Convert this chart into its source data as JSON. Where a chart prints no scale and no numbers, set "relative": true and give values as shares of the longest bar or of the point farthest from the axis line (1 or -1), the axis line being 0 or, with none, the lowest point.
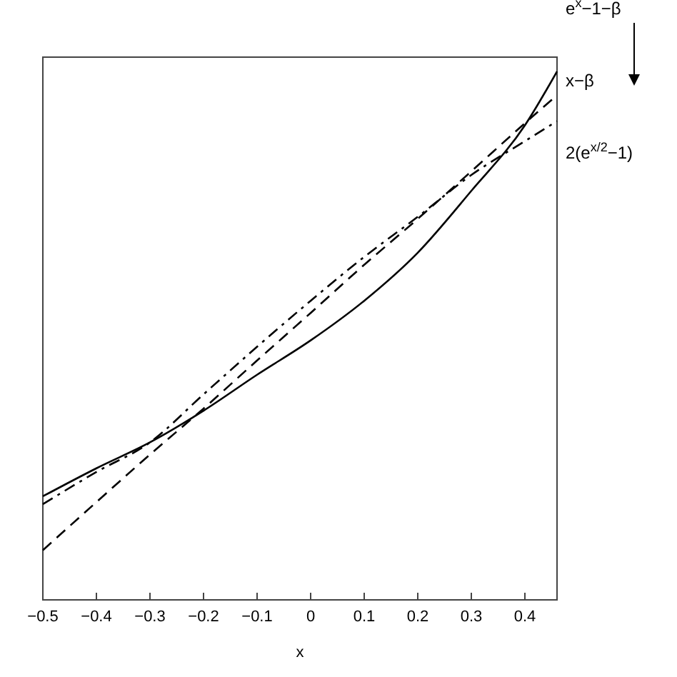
{
  "chart_data": {
    "type": "line",
    "relative": true,
    "xlabel": "x",
    "xlim": [
      -0.5,
      0.46
    ],
    "xticks": [
      -0.5,
      -0.4,
      -0.3,
      -0.2,
      -0.1,
      0,
      0.1,
      0.2,
      0.3,
      0.4
    ],
    "grid": false,
    "legend": "right",
    "x": [
      -0.5,
      -0.4,
      -0.3,
      -0.2,
      -0.1,
      0,
      0.1,
      0.2,
      0.3,
      0.4,
      0.46
    ],
    "series": [
      {
        "name": "e$^{x}$−1−β",
        "color": "#000000",
        "line_style": "solid",
        "values": [
          0.196,
          0.249,
          0.298,
          0.358,
          0.426,
          0.491,
          0.566,
          0.657,
          0.774,
          0.898,
          1
        ]
      },
      {
        "name": "x−β",
        "color": "#000000",
        "line_style": "dashed",
        "values": [
          0.094,
          0.185,
          0.275,
          0.362,
          0.453,
          0.543,
          0.634,
          0.721,
          0.811,
          0.902,
          0.955
        ]
      },
      {
        "name": "2(e$^{x/2}$−1)",
        "color": "#000000",
        "line_style": "dashdot",
        "values": [
          0.181,
          0.242,
          0.298,
          0.389,
          0.479,
          0.566,
          0.649,
          0.725,
          0.804,
          0.868,
          0.906
        ]
      }
    ]
  }
}
